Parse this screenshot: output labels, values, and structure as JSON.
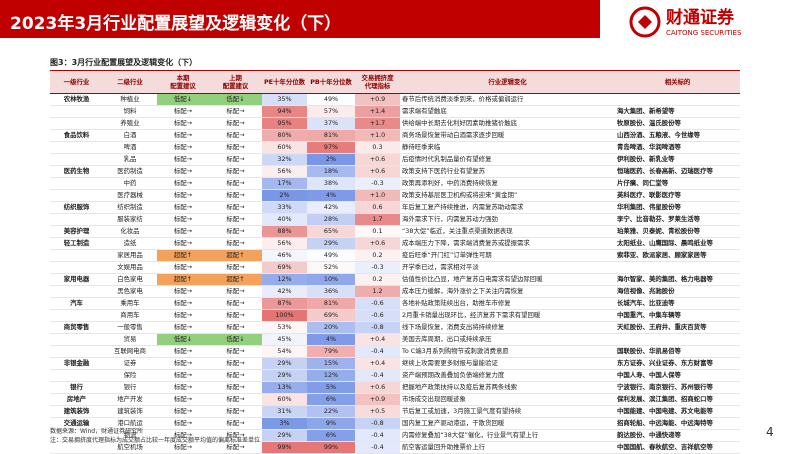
{
  "header": {
    "title": "2023年3月行业配置展望及逻辑变化（下）",
    "logo_cn": "财通证券",
    "logo_en": "CAITONG SECURITIES",
    "page": "4"
  },
  "table": {
    "caption": "图3：3月行业配置展望及逻辑变化（下）",
    "columns": [
      "一级行业",
      "二级行业",
      "本期\n配置建议",
      "上期\n配置建议",
      "PE十年分位数",
      "PB十年分位数",
      "交易拥挤度\n代理指标",
      "行业逻辑变化",
      "相关标的"
    ],
    "highlight_colors": {
      "低配↓": "#92d07e",
      "超配↑": "#f4a15c"
    },
    "rows": [
      [
        "农林牧渔",
        "种植业",
        "低配↓",
        "低配↓",
        "35%",
        "49%",
        "+0.9",
        "春节后传统消费淡季到来，价格或偏弱运行",
        null
      ],
      [
        null,
        "饲料",
        "标配→",
        "标配→",
        "94%",
        "57%",
        "+1.4",
        "需求端有望触底",
        "海大集团、新希望等"
      ],
      [
        null,
        "养殖业",
        "标配→",
        "标配→",
        "95%",
        "37%",
        "+1.7",
        "供给端中长期去化利好因素助推猪价触底",
        "牧原股份、温氏股份等"
      ],
      [
        "食品饮料",
        "白酒",
        "标配→",
        "标配→",
        "80%",
        "81%",
        "+1.0",
        "商务场景恢复带动白酒需求逐步回暖",
        "山西汾酒、五粮液、今世缘等"
      ],
      [
        null,
        "啤酒",
        "标配→",
        "标配→",
        "60%",
        "97%",
        "0.3",
        "静待旺季来临",
        "青岛啤酒、华润啤酒等"
      ],
      [
        null,
        "乳品",
        "标配→",
        "标配→",
        "32%",
        "2%",
        "+0.6",
        "后疫情时代乳制品量价有望修复",
        "伊利股份、新乳业等"
      ],
      [
        "医药生物",
        "医药制造",
        "标配→",
        "标配→",
        "56%",
        "18%",
        "+0.6",
        "政策支持下医药行业有望复苏",
        "恒瑞医药、长春高新、迈瑞医疗等"
      ],
      [
        null,
        "中药",
        "标配→",
        "标配→",
        "17%",
        "38%",
        "-0.3",
        "政策再添利好，中药消费持续恢复",
        "片仔癀、同仁堂等"
      ],
      [
        null,
        "医疗器械",
        "标配→",
        "标配→",
        "2%",
        "4%",
        "+1.0",
        "政策支持基层医卫机构或将迎来“黄金期”",
        "英科医疗、联影医疗等"
      ],
      [
        "纺织服饰",
        "纺织制造",
        "标配→",
        "标配→",
        "33%",
        "42%",
        "0.6",
        "年后复工复产持续推进，内需复苏助动需求",
        "华利集团、伟星股份等"
      ],
      [
        null,
        "服装家纺",
        "标配→",
        "标配→",
        "40%",
        "28%",
        "1.7",
        "海外需求下行，内需复苏动力强劲",
        "李宁、比音勒芬、罗莱生活等"
      ],
      [
        "美容护理",
        "化妆品",
        "标配→",
        "标配→",
        "88%",
        "65%",
        "0.1",
        "“38大促”临近，关注重点渠道数据表现",
        "珀莱雅、贝泰妮、青松股份等"
      ],
      [
        "轻工制造",
        "造纸",
        "标配→",
        "标配→",
        "56%",
        "29%",
        "+0.6",
        "成本端压力下降，需求端消费复苏或提振需求",
        "太阳纸业、山鹰国际、晨鸣纸业等"
      ],
      [
        null,
        "家居用品",
        "超配↑",
        "超配↑",
        "46%",
        "49%",
        "0.2",
        "疫后旺季“开门红”订单弹性可期",
        "索菲亚、欧派家居、顾家家居等"
      ],
      [
        null,
        "文娱用品",
        "标配→",
        "标配→",
        "69%",
        "52%",
        "-0.3",
        "开学季已过，需求相对平淡",
        null
      ],
      [
        "家用电器",
        "白色家电",
        "超配↑",
        "超配↑",
        "12%",
        "10%",
        "0.2",
        "估值性价比凸显，地产复苏白电需求有望边际回暖",
        "海尔智家、美的集团、格力电器等"
      ],
      [
        null,
        "黑色家电",
        "标配→",
        "标配→",
        "42%",
        "36%",
        "1.2",
        "成本压力缓解，海外涨价之下关注内需恢复",
        "海信视像、兆驰股份"
      ],
      [
        "汽车",
        "乘用车",
        "标配→",
        "标配→",
        "87%",
        "81%",
        "-0.6",
        "各地补贴政策陆续出台，助推车市修复",
        "长城汽车、比亚迪等"
      ],
      [
        null,
        "商用车",
        "标配→",
        "标配→",
        "100%",
        "69%",
        "-0.6",
        "2月重卡销量出现环比，经济复苏下需求有望回暖",
        "中国重汽、中集车辆等"
      ],
      [
        "商贸零售",
        "一般零售",
        "标配→",
        "标配→",
        "53%",
        "20%",
        "-0.8",
        "线下场景恢复，消费支出将持续修复",
        "天虹股份、王府井、重庆百货等"
      ],
      [
        null,
        "贸易",
        "低配↓",
        "低配↓",
        "45%",
        "4%",
        "+0.4",
        "美国去库周期，出口或持续承压",
        null
      ],
      [
        null,
        "互联网电商",
        "标配→",
        "标配→",
        "54%",
        "79%",
        "-0.4",
        "To C端3月系列购物节或刺激消费意愿",
        "国联股份、华凯易佰等"
      ],
      [
        "非银金融",
        "证券",
        "标配→",
        "标配→",
        "29%",
        "15%",
        "+0.4",
        "继续上攻需要更多财报与量能验证",
        "东方证券、兴业证券、东方财富等"
      ],
      [
        null,
        "保险",
        "标配→",
        "标配→",
        "29%",
        "12%",
        "-0.4",
        "资产端预期改善叠加负债端修复力度",
        "中国人寿、中国人保等"
      ],
      [
        "银行",
        "银行",
        "标配→",
        "标配→",
        "13%",
        "5%",
        "+0.6",
        "把握地产政策扶持以及疫后复苏两条线索",
        "宁波银行、南京银行、苏州银行等"
      ],
      [
        "房地产",
        "地产开发",
        "标配→",
        "标配→",
        "60%",
        "6%",
        "+0.9",
        "市场成交出现回暖迹象",
        "保利发展、滨江集团、招商蛇口等"
      ],
      [
        "建筑装饰",
        "建筑装饰",
        "标配→",
        "标配→",
        "31%",
        "22%",
        "+0.5",
        "节后复工或加速，3月施工景气度有望持续",
        "中国能建、中国电建、苏文电能等"
      ],
      [
        "交通运输",
        "港口航运",
        "标配→",
        "标配→",
        "3%",
        "9%",
        "-0.8",
        "国内复工复产驱动港运，干散货回暖",
        "招商轮船、中远海能、中远海特等"
      ],
      [
        null,
        "物流",
        "标配→",
        "标配→",
        "29%",
        "6%",
        "-0.4",
        "内需修复叠加“38大促”催化，行业景气有望上行",
        "韵达股份、中通快递等"
      ],
      [
        null,
        "航空机场",
        "标配→",
        "标配→",
        "99%",
        "99%",
        "-0.4",
        "航空客运量回升助推票价上行",
        "中国国航、春秋航空、吉祥航空等"
      ]
    ]
  },
  "notes": [
    "数据来源：Wind，财通证券研究所",
    "注：交易拥挤度代理指标为成交额占比较一年度成交额平均值的偏离标准差单位"
  ]
}
